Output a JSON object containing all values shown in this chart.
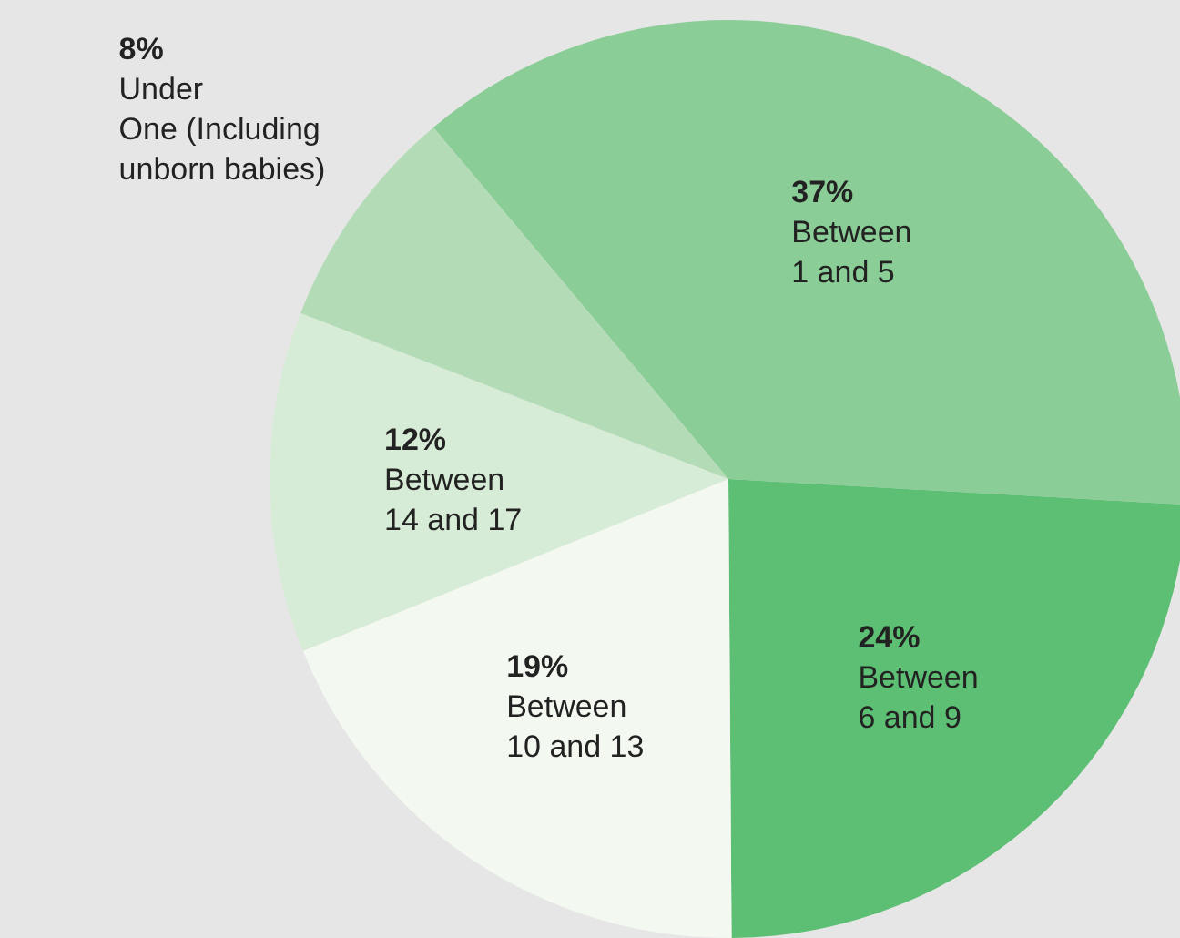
{
  "chart_data": {
    "type": "pie",
    "categories": [
      "Between 1 and 5",
      "Between 6 and 9",
      "Between 10 and 13",
      "Between 14 and 17",
      "Under One (Including unborn babies)"
    ],
    "values": [
      37,
      24,
      19,
      12,
      8
    ],
    "value_labels": [
      "37%",
      "24%",
      "19%",
      "12%",
      "8%"
    ],
    "colors": [
      "#8bcd96",
      "#5dbf74",
      "#f3f9f1",
      "#d7ecd6",
      "#b3dcb6"
    ],
    "legend": false
  }
}
